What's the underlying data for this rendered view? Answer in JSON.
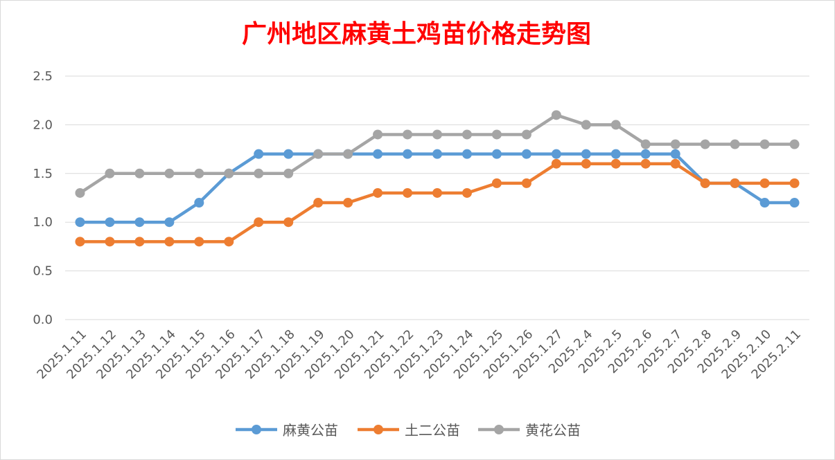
{
  "chart_data": {
    "type": "line",
    "title": "广州地区麻黄土鸡苗价格走势图",
    "xlabel": "",
    "ylabel": "",
    "ylim": [
      0,
      2.5
    ],
    "yticks": [
      "0.0",
      "0.5",
      "1.0",
      "1.5",
      "2.0",
      "2.5"
    ],
    "grid": true,
    "legend_position": "bottom",
    "categories": [
      "2025.1.11",
      "2025.1.12",
      "2025.1.13",
      "2025.1.14",
      "2025.1.15",
      "2025.1.16",
      "2025.1.17",
      "2025.1.18",
      "2025.1.19",
      "2025.1.20",
      "2025.1.21",
      "2025.1.22",
      "2025.1.23",
      "2025.1.24",
      "2025.1.25",
      "2025.1.26",
      "2025.1.27",
      "2025.2.4",
      "2025.2.5",
      "2025.2.6",
      "2025.2.7",
      "2025.2.8",
      "2025.2.9",
      "2025.2.10",
      "2025.2.11"
    ],
    "series": [
      {
        "name": "麻黄公苗",
        "color": "#5b9bd5",
        "values": [
          1.0,
          1.0,
          1.0,
          1.0,
          1.2,
          1.5,
          1.7,
          1.7,
          1.7,
          1.7,
          1.7,
          1.7,
          1.7,
          1.7,
          1.7,
          1.7,
          1.7,
          1.7,
          1.7,
          1.7,
          1.7,
          1.4,
          1.4,
          1.2,
          1.2
        ]
      },
      {
        "name": "土二公苗",
        "color": "#ed7d31",
        "values": [
          0.8,
          0.8,
          0.8,
          0.8,
          0.8,
          0.8,
          1.0,
          1.0,
          1.2,
          1.2,
          1.3,
          1.3,
          1.3,
          1.3,
          1.4,
          1.4,
          1.6,
          1.6,
          1.6,
          1.6,
          1.6,
          1.4,
          1.4,
          1.4,
          1.4
        ]
      },
      {
        "name": "黄花公苗",
        "color": "#a5a5a5",
        "values": [
          1.3,
          1.5,
          1.5,
          1.5,
          1.5,
          1.5,
          1.5,
          1.5,
          1.7,
          1.7,
          1.9,
          1.9,
          1.9,
          1.9,
          1.9,
          1.9,
          2.1,
          2.0,
          2.0,
          1.8,
          1.8,
          1.8,
          1.8,
          1.8,
          1.8
        ]
      }
    ]
  }
}
